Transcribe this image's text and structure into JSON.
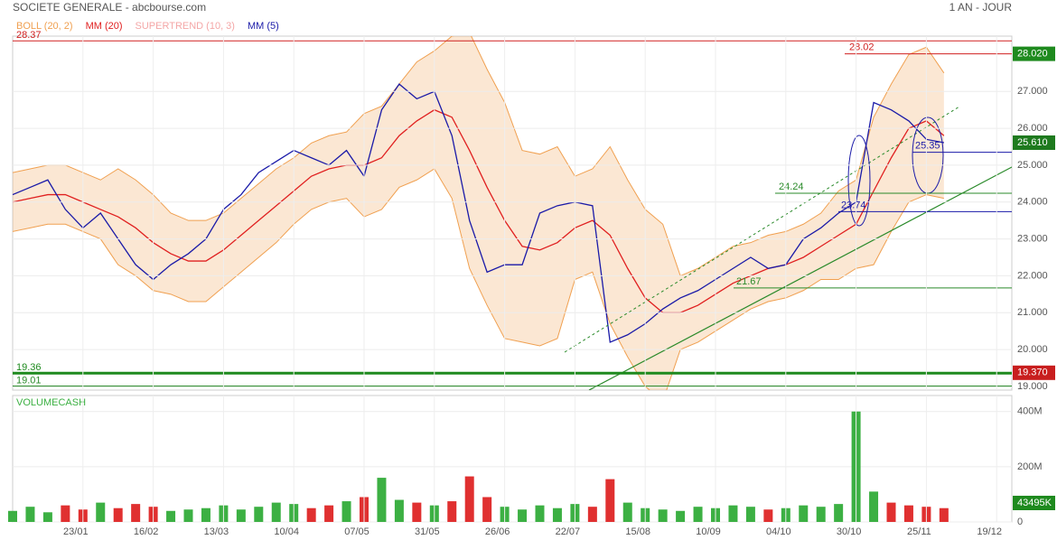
{
  "chart_data": [
    {
      "type": "line",
      "title": "SOCIETE GENERALE - abcbourse.com",
      "subtitle": "1 AN - JOUR",
      "ylim": [
        18.9,
        28.5
      ],
      "yticks": [
        {
          "value": 19,
          "label": "19.000"
        },
        {
          "value": 20,
          "label": "20.000"
        },
        {
          "value": 21,
          "label": "21.000"
        },
        {
          "value": 22,
          "label": "22.000"
        },
        {
          "value": 23,
          "label": "23.000"
        },
        {
          "value": 24,
          "label": "24.000"
        },
        {
          "value": 25,
          "label": "25.000"
        },
        {
          "value": 26,
          "label": "26.000"
        },
        {
          "value": 27,
          "label": "27.000"
        }
      ],
      "grid": true,
      "series": [
        {
          "name": "BOLL (20, 2)",
          "color": "#f0a050",
          "upper": [
            24.8,
            24.9,
            25.0,
            25.0,
            24.8,
            24.6,
            24.9,
            24.6,
            24.2,
            23.7,
            23.5,
            23.5,
            23.7,
            24.1,
            24.5,
            24.9,
            25.2,
            25.6,
            25.8,
            25.9,
            26.4,
            26.6,
            27.2,
            27.8,
            28.1,
            28.5,
            28.6,
            27.6,
            26.7,
            25.4,
            25.3,
            25.5,
            24.7,
            24.9,
            25.5,
            24.6,
            23.8,
            23.4,
            22.0,
            22.2,
            22.5,
            22.8,
            22.9,
            23.1,
            23.2,
            23.4,
            23.7,
            24.3,
            24.6,
            26.3,
            27.2,
            28.0,
            28.2,
            27.5,
            null,
            null,
            null
          ],
          "lower": [
            23.2,
            23.3,
            23.4,
            23.4,
            23.2,
            23.0,
            22.3,
            22.0,
            21.6,
            21.5,
            21.3,
            21.3,
            21.7,
            22.1,
            22.5,
            22.9,
            23.4,
            23.8,
            24.0,
            24.1,
            23.6,
            23.8,
            24.4,
            24.6,
            24.9,
            24.1,
            22.2,
            21.2,
            20.3,
            20.2,
            20.1,
            20.3,
            21.9,
            22.1,
            20.7,
            19.8,
            19.0,
            18.6,
            20.0,
            20.2,
            20.5,
            20.8,
            21.1,
            21.3,
            21.4,
            21.6,
            21.9,
            21.9,
            22.2,
            22.3,
            23.2,
            24.0,
            24.2,
            24.1,
            null,
            null,
            null
          ]
        },
        {
          "name": "MM (20)",
          "color": "#e02020",
          "values": [
            24.0,
            24.1,
            24.2,
            24.2,
            24.0,
            23.8,
            23.6,
            23.3,
            22.9,
            22.6,
            22.4,
            22.4,
            22.7,
            23.1,
            23.5,
            23.9,
            24.3,
            24.7,
            24.9,
            25.0,
            25.0,
            25.2,
            25.8,
            26.2,
            26.5,
            26.3,
            25.4,
            24.4,
            23.5,
            22.8,
            22.7,
            22.9,
            23.3,
            23.5,
            23.1,
            22.2,
            21.4,
            21.0,
            21.0,
            21.2,
            21.5,
            21.8,
            22.0,
            22.2,
            22.3,
            22.5,
            22.8,
            23.1,
            23.4,
            24.3,
            25.2,
            26.0,
            26.2,
            25.8,
            null,
            null,
            null
          ]
        },
        {
          "name": "SUPERTREND (10, 3)",
          "color": "#f4a6a6"
        },
        {
          "name": "MM (5)",
          "color": "#1a1aa8",
          "values": [
            24.2,
            24.4,
            24.6,
            23.8,
            23.3,
            23.7,
            23.0,
            22.3,
            21.9,
            22.3,
            22.6,
            23.0,
            23.8,
            24.2,
            24.8,
            25.1,
            25.4,
            25.2,
            25.0,
            25.4,
            24.7,
            26.5,
            27.2,
            26.8,
            27.0,
            25.8,
            23.5,
            22.1,
            22.3,
            22.3,
            23.7,
            23.9,
            24.0,
            23.9,
            20.2,
            20.4,
            20.7,
            21.1,
            21.4,
            21.6,
            21.9,
            22.2,
            22.5,
            22.2,
            22.3,
            23.0,
            23.3,
            23.7,
            24.0,
            26.7,
            26.5,
            26.2,
            25.7,
            25.61,
            null,
            null,
            null
          ]
        }
      ],
      "levels": [
        {
          "value": 28.37,
          "color": "#d02020"
        },
        {
          "value": 28.02,
          "color": "#d02020"
        },
        {
          "value": 25.35,
          "color": "#1a1aa8"
        },
        {
          "value": 24.24,
          "color": "#2a8a2a"
        },
        {
          "value": 23.74,
          "color": "#1a1aa8"
        },
        {
          "value": 21.67,
          "color": "#2a8a2a"
        },
        {
          "value": 19.36,
          "color": "#1e8a1e",
          "width": 3
        },
        {
          "value": 19.01,
          "color": "#2a8a2a"
        }
      ],
      "tags": [
        {
          "value": 28.02,
          "label": "28.020",
          "color": "#1e8a1e"
        },
        {
          "value": 25.61,
          "label": "25.610",
          "color": "#1e7a1e"
        },
        {
          "value": 19.37,
          "label": "19.370",
          "color": "#c81e1e"
        }
      ]
    },
    {
      "type": "bar",
      "title": "VOLUMECASH",
      "categories": [
        null,
        null,
        null,
        null,
        "23/01",
        null,
        null,
        null,
        "16/02",
        null,
        null,
        null,
        "13/03",
        null,
        null,
        null,
        "10/04",
        null,
        null,
        null,
        "07/05",
        null,
        null,
        null,
        "31/05",
        null,
        null,
        null,
        "26/06",
        null,
        null,
        null,
        "22/07",
        null,
        null,
        null,
        "15/08",
        null,
        null,
        null,
        "10/09",
        null,
        null,
        null,
        "04/10",
        null,
        null,
        null,
        "30/10",
        null,
        null,
        null,
        "25/11",
        null,
        null,
        null,
        "19/12"
      ],
      "values": [
        40,
        55,
        35,
        60,
        45,
        70,
        50,
        65,
        55,
        40,
        45,
        50,
        60,
        45,
        55,
        70,
        65,
        50,
        60,
        75,
        90,
        160,
        80,
        70,
        60,
        75,
        165,
        90,
        55,
        45,
        60,
        50,
        65,
        55,
        155,
        70,
        50,
        45,
        40,
        55,
        50,
        60,
        55,
        45,
        50,
        60,
        55,
        65,
        400,
        110,
        70,
        60,
        55,
        50,
        null,
        null,
        null
      ],
      "colors": {
        "up": "#3cb043",
        "down": "#e03030"
      },
      "ylim": [
        0,
        458
      ],
      "yticks": [
        0,
        {
          "value": 200,
          "label": "200M"
        },
        {
          "value": 400,
          "label": "400M"
        }
      ],
      "tags": [
        {
          "value": 43.495,
          "label": "43495K",
          "color": "#1e8a1e"
        }
      ]
    }
  ]
}
